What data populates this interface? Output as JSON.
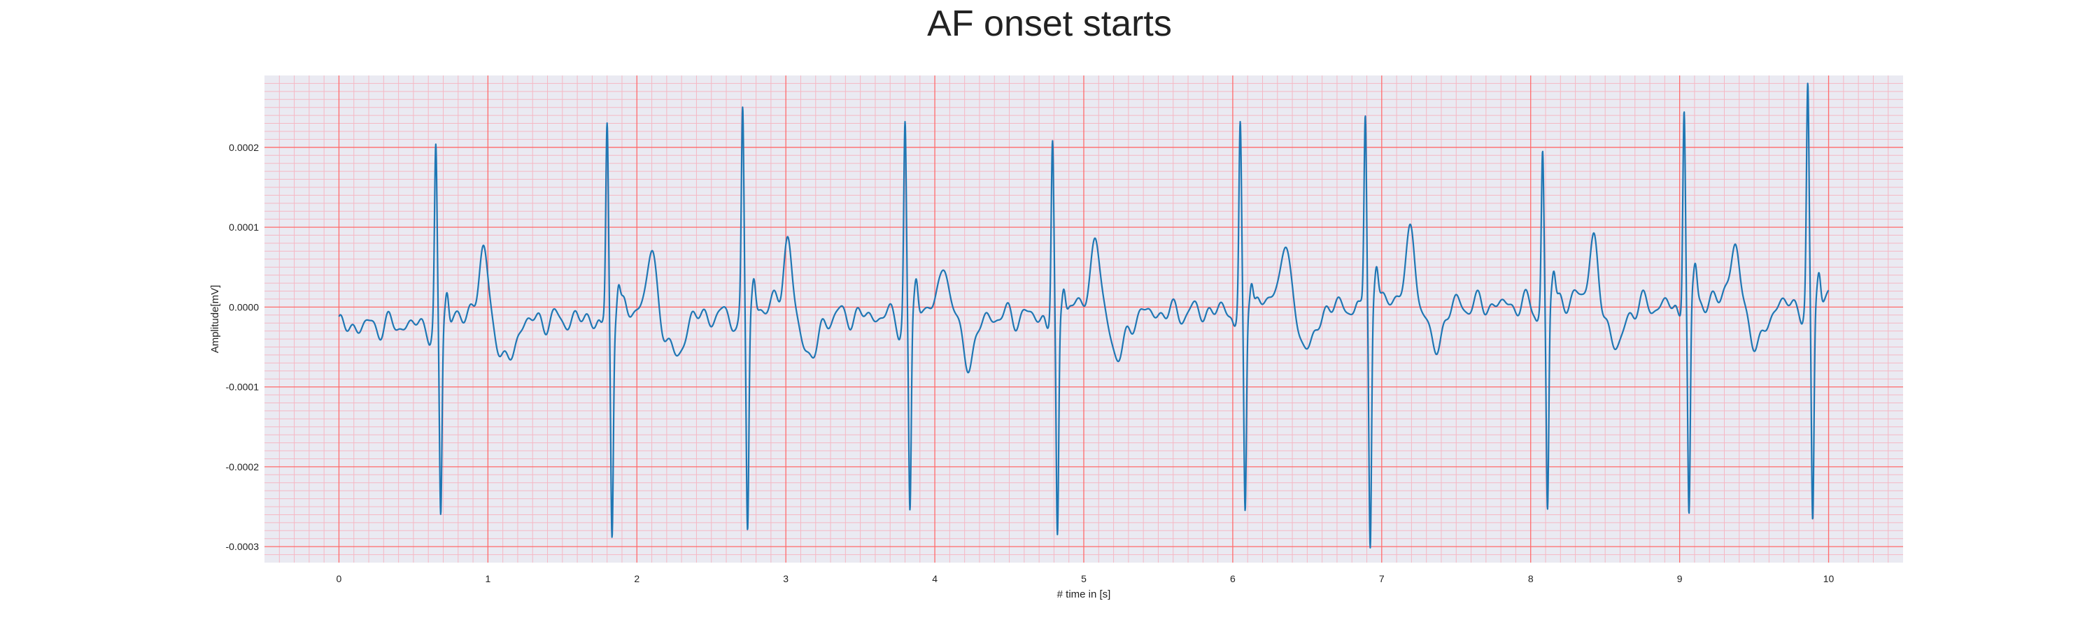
{
  "chart_data": {
    "type": "line",
    "title": "AF onset starts",
    "xlabel": "# time in [s]",
    "ylabel": "Amplitude[mV]",
    "xlim": [
      -0.5,
      10.5
    ],
    "ylim": [
      -0.00032,
      0.00029
    ],
    "x_ticks": [
      0,
      1,
      2,
      3,
      4,
      5,
      6,
      7,
      8,
      9,
      10
    ],
    "x_tick_labels": [
      "0",
      "1",
      "2",
      "3",
      "4",
      "5",
      "6",
      "7",
      "8",
      "9",
      "10"
    ],
    "y_ticks": [
      -0.0003,
      -0.0002,
      -0.0001,
      0.0,
      0.0001,
      0.0002
    ],
    "y_tick_labels": [
      "-0.0003",
      "-0.0002",
      "-0.0001",
      "0.0000",
      "0.0001",
      "0.0002"
    ],
    "grid": true,
    "minor_grid": true,
    "colors": {
      "background": "#eaeaf2",
      "line": "#1f77b4",
      "major_grid": "#ff6b6b",
      "minor_grid": "#f5b8c4"
    },
    "series": [
      {
        "r_peaks": [
          {
            "t": 0.65,
            "r": 0.000212,
            "s": -0.000245
          },
          {
            "t": 1.8,
            "r": 0.000235,
            "s": -0.000268
          },
          {
            "t": 2.71,
            "r": 0.000253,
            "s": -0.000268
          },
          {
            "t": 3.8,
            "r": 0.000236,
            "s": -0.00025
          },
          {
            "t": 4.79,
            "r": 0.000215,
            "s": -0.000287
          },
          {
            "t": 6.05,
            "r": 0.000225,
            "s": -0.000263
          },
          {
            "t": 6.89,
            "r": 0.000245,
            "s": -0.000293
          },
          {
            "t": 8.08,
            "r": 0.000193,
            "s": -0.000267
          },
          {
            "t": 9.03,
            "r": 0.000256,
            "s": -0.000271
          },
          {
            "t": 9.86,
            "r": 0.000263,
            "s": -0.000277
          }
        ],
        "t_waves": [
          {
            "t": 0.97,
            "v": 8.7e-05
          },
          {
            "t": 2.1,
            "v": 7.7e-05
          },
          {
            "t": 3.01,
            "v": 8.7e-05
          },
          {
            "t": 4.07,
            "v": 6.6e-05
          },
          {
            "t": 5.08,
            "v": 9.2e-05
          },
          {
            "t": 6.35,
            "v": 8e-05
          },
          {
            "t": 7.2,
            "v": 8.7e-05
          },
          {
            "t": 8.42,
            "v": 7.4e-05
          },
          {
            "t": 9.37,
            "v": 7.2e-05
          }
        ],
        "x_start": 0.0,
        "x_end": 10.0,
        "y_start": -1.2e-05,
        "y_end": 2.1e-05
      }
    ]
  }
}
